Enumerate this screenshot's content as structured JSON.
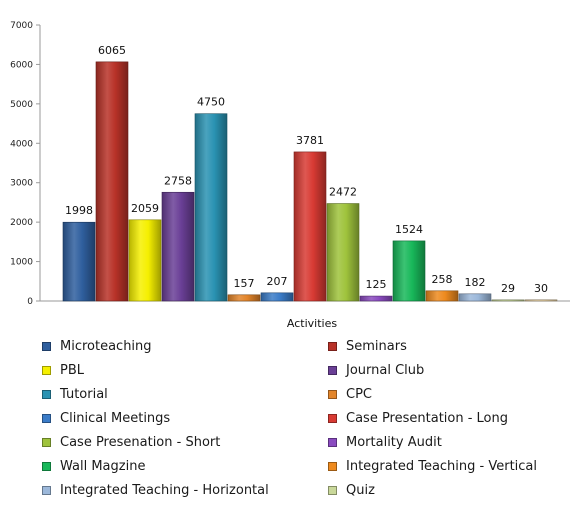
{
  "chart_data": {
    "type": "bar",
    "title": "",
    "xlabel": "Activities",
    "ylabel": "",
    "ylim": [
      0,
      7000
    ],
    "yticks": [
      0,
      1000,
      2000,
      3000,
      4000,
      5000,
      6000,
      7000
    ],
    "grid": false,
    "legend_position": "bottom",
    "series": [
      {
        "name": "Microteaching",
        "value": 1998,
        "label": "1998",
        "color": "#2f5f9e"
      },
      {
        "name": "Seminars",
        "value": 6065,
        "label": "6065",
        "color": "#b83228"
      },
      {
        "name": "PBL",
        "value": 2059,
        "label": "2059",
        "color": "#f5f000"
      },
      {
        "name": "Journal Club",
        "value": 2758,
        "label": "2758",
        "color": "#6a3f96"
      },
      {
        "name": "Tutorial",
        "value": 4750,
        "label": "4750",
        "color": "#2a93b3"
      },
      {
        "name": "CPC",
        "value": 157,
        "label": "157",
        "color": "#e3852a"
      },
      {
        "name": "Clinical Meetings",
        "value": 207,
        "label": "207",
        "color": "#3b7cc8"
      },
      {
        "name": "Case Presentation - Long",
        "value": 3781,
        "label": "3781",
        "color": "#d83a33"
      },
      {
        "name": "Case Presenation - Short",
        "value": 2472,
        "label": "2472",
        "color": "#9fc33c"
      },
      {
        "name": "Mortality Audit",
        "value": 125,
        "label": "125",
        "color": "#8a4bc0"
      },
      {
        "name": "Wall Magzine",
        "value": 1524,
        "label": "1524",
        "color": "#18b85a"
      },
      {
        "name": "Integrated Teaching - Vertical",
        "value": 258,
        "label": "258",
        "color": "#ee8a1e"
      },
      {
        "name": "Integrated Teaching - Horizontal",
        "value": 182,
        "label": "182",
        "color": "#9cb8da"
      },
      {
        "name": "Quiz",
        "value": 29,
        "label": "29",
        "color": "#c9d89a"
      },
      {
        "name": "",
        "value": 30,
        "label": "30",
        "color": "#f0d8a8"
      }
    ]
  }
}
